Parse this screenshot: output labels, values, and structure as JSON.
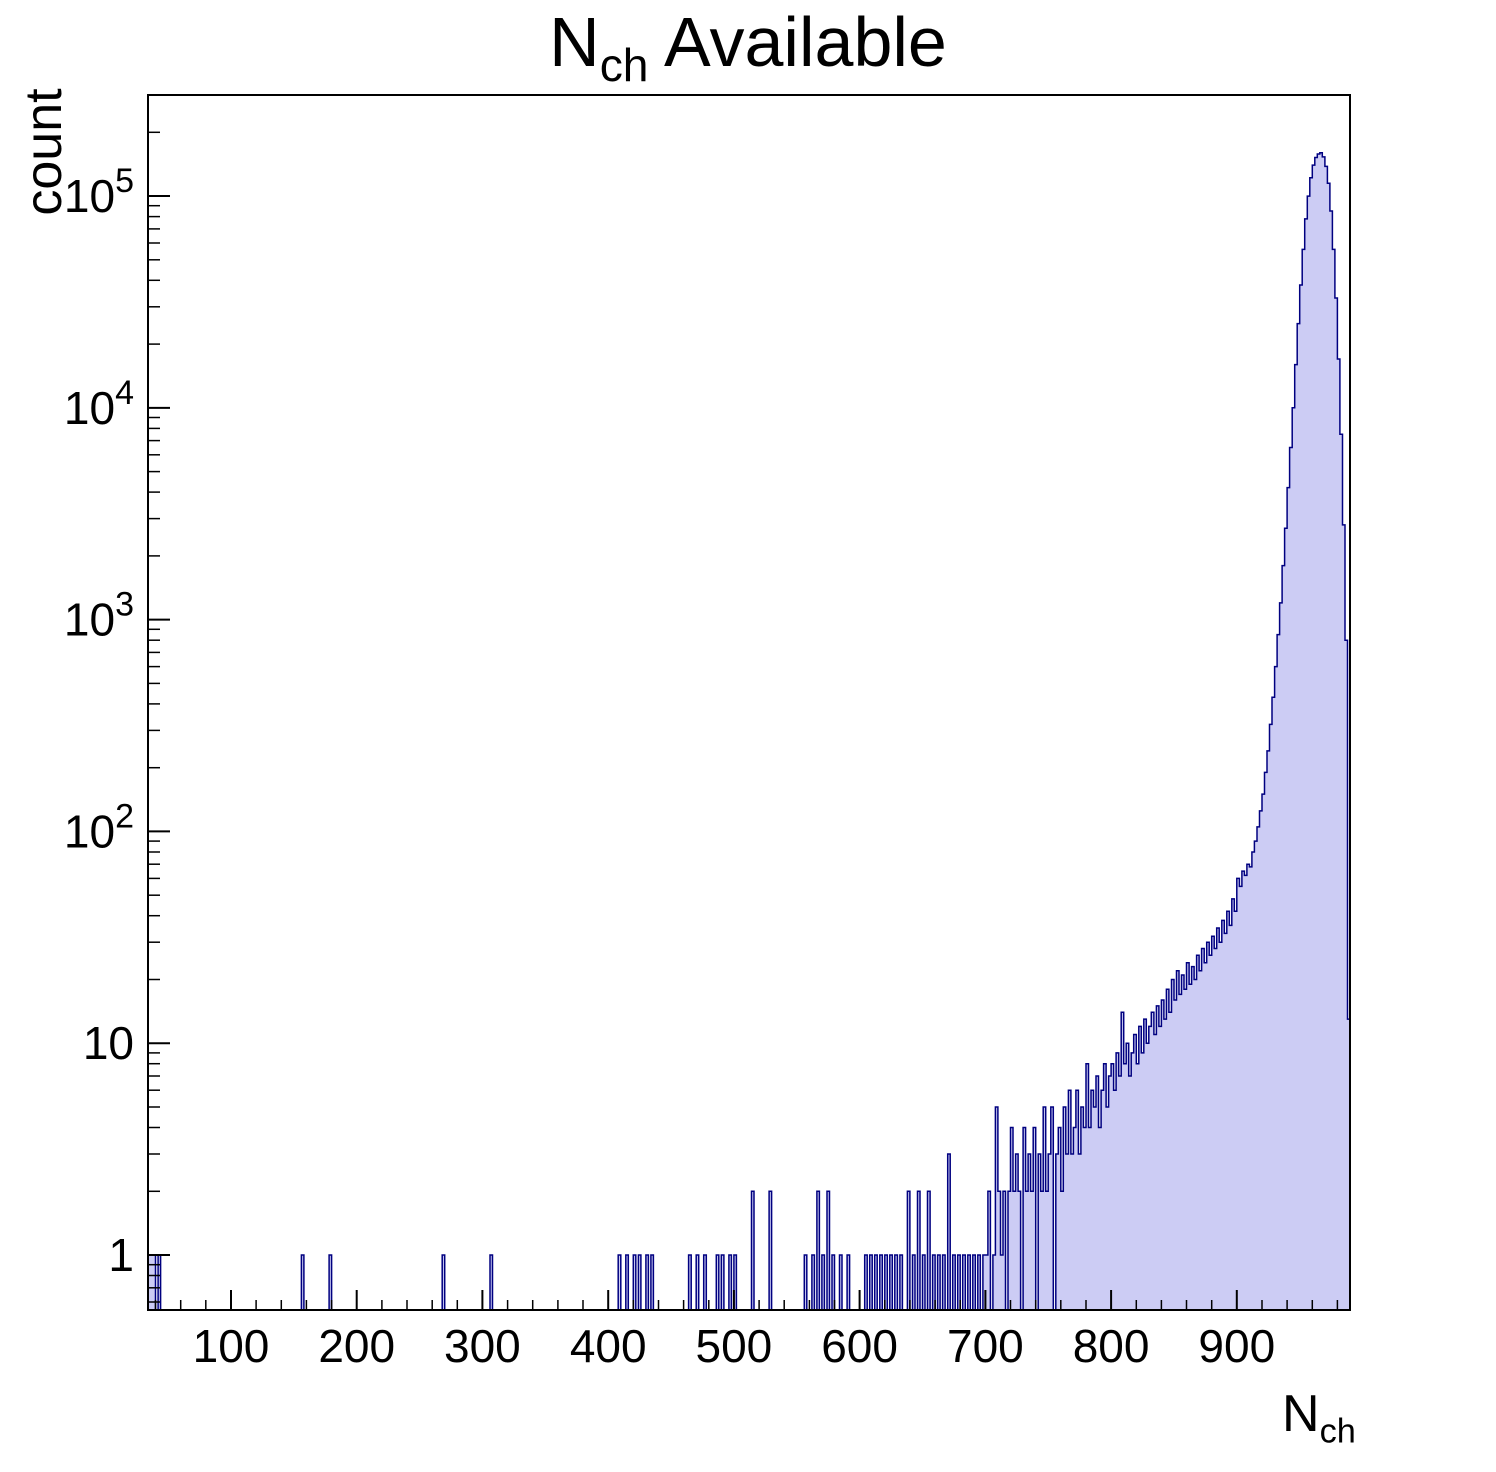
{
  "chart_data": {
    "type": "bar",
    "subtype": "filled-step-histogram",
    "title_parts": {
      "main": "N",
      "sub": "ch",
      "rest": " Available"
    },
    "ylabel": "count",
    "xlabel_parts": {
      "main": "N",
      "sub": "ch"
    },
    "yscale": "log",
    "grid": false,
    "legend_position": "none",
    "xlim": [
      34,
      990
    ],
    "ylim": [
      0.55,
      300000
    ],
    "bin_width": 2,
    "x_major_ticks": [
      100,
      200,
      300,
      400,
      500,
      600,
      700,
      800,
      900
    ],
    "x_minor_step": 20,
    "y_major_ticks": [
      1,
      10,
      100,
      1000,
      10000,
      100000
    ],
    "colors": {
      "fill": "#ccccf4",
      "line": "#000080",
      "axis": "#000000",
      "text": "#000000"
    },
    "bins": [
      [
        34,
        1
      ],
      [
        36,
        1
      ],
      [
        38,
        1
      ],
      [
        42,
        1
      ],
      [
        156,
        1
      ],
      [
        178,
        1
      ],
      [
        268,
        1
      ],
      [
        306,
        1
      ],
      [
        408,
        1
      ],
      [
        414,
        1
      ],
      [
        420,
        1
      ],
      [
        424,
        1
      ],
      [
        430,
        1
      ],
      [
        434,
        1
      ],
      [
        464,
        1
      ],
      [
        470,
        1
      ],
      [
        476,
        1
      ],
      [
        486,
        1
      ],
      [
        490,
        1
      ],
      [
        496,
        1
      ],
      [
        500,
        1
      ],
      [
        514,
        2
      ],
      [
        528,
        2
      ],
      [
        556,
        1
      ],
      [
        562,
        1
      ],
      [
        566,
        2
      ],
      [
        570,
        1
      ],
      [
        574,
        2
      ],
      [
        578,
        1
      ],
      [
        584,
        1
      ],
      [
        590,
        1
      ],
      [
        604,
        1
      ],
      [
        608,
        1
      ],
      [
        612,
        1
      ],
      [
        616,
        1
      ],
      [
        620,
        1
      ],
      [
        624,
        1
      ],
      [
        628,
        1
      ],
      [
        632,
        1
      ],
      [
        638,
        2
      ],
      [
        642,
        1
      ],
      [
        646,
        2
      ],
      [
        650,
        1
      ],
      [
        654,
        2
      ],
      [
        658,
        1
      ],
      [
        662,
        1
      ],
      [
        666,
        1
      ],
      [
        670,
        3
      ],
      [
        674,
        1
      ],
      [
        678,
        1
      ],
      [
        682,
        1
      ],
      [
        686,
        1
      ],
      [
        690,
        1
      ],
      [
        694,
        1
      ],
      [
        698,
        1
      ],
      [
        700,
        1
      ],
      [
        702,
        2
      ],
      [
        706,
        1
      ],
      [
        708,
        5
      ],
      [
        710,
        2
      ],
      [
        712,
        1
      ],
      [
        714,
        2
      ],
      [
        718,
        2
      ],
      [
        720,
        4
      ],
      [
        722,
        2
      ],
      [
        724,
        3
      ],
      [
        726,
        2
      ],
      [
        730,
        4
      ],
      [
        732,
        2
      ],
      [
        734,
        3
      ],
      [
        736,
        2
      ],
      [
        738,
        4
      ],
      [
        742,
        3
      ],
      [
        744,
        2
      ],
      [
        746,
        5
      ],
      [
        748,
        2
      ],
      [
        750,
        3
      ],
      [
        752,
        5
      ],
      [
        756,
        3
      ],
      [
        758,
        4
      ],
      [
        760,
        2
      ],
      [
        762,
        5
      ],
      [
        764,
        3
      ],
      [
        766,
        6
      ],
      [
        768,
        3
      ],
      [
        770,
        4
      ],
      [
        772,
        6
      ],
      [
        774,
        3
      ],
      [
        776,
        5
      ],
      [
        778,
        4
      ],
      [
        780,
        8
      ],
      [
        782,
        4
      ],
      [
        784,
        6
      ],
      [
        786,
        5
      ],
      [
        788,
        7
      ],
      [
        790,
        4
      ],
      [
        792,
        6
      ],
      [
        794,
        8
      ],
      [
        796,
        5
      ],
      [
        798,
        7
      ],
      [
        800,
        8
      ],
      [
        802,
        6
      ],
      [
        804,
        9
      ],
      [
        806,
        7
      ],
      [
        808,
        14
      ],
      [
        810,
        8
      ],
      [
        812,
        10
      ],
      [
        814,
        7
      ],
      [
        816,
        9
      ],
      [
        818,
        11
      ],
      [
        820,
        8
      ],
      [
        822,
        12
      ],
      [
        824,
        9
      ],
      [
        826,
        13
      ],
      [
        828,
        10
      ],
      [
        830,
        12
      ],
      [
        832,
        14
      ],
      [
        834,
        11
      ],
      [
        836,
        15
      ],
      [
        838,
        12
      ],
      [
        840,
        16
      ],
      [
        842,
        13
      ],
      [
        844,
        18
      ],
      [
        846,
        14
      ],
      [
        848,
        20
      ],
      [
        850,
        16
      ],
      [
        852,
        22
      ],
      [
        854,
        17
      ],
      [
        856,
        21
      ],
      [
        858,
        18
      ],
      [
        860,
        24
      ],
      [
        862,
        19
      ],
      [
        864,
        23
      ],
      [
        866,
        20
      ],
      [
        868,
        26
      ],
      [
        870,
        22
      ],
      [
        872,
        28
      ],
      [
        874,
        24
      ],
      [
        876,
        30
      ],
      [
        878,
        26
      ],
      [
        880,
        32
      ],
      [
        882,
        28
      ],
      [
        884,
        35
      ],
      [
        886,
        30
      ],
      [
        888,
        38
      ],
      [
        890,
        33
      ],
      [
        892,
        42
      ],
      [
        894,
        36
      ],
      [
        896,
        48
      ],
      [
        898,
        42
      ],
      [
        900,
        60
      ],
      [
        902,
        55
      ],
      [
        904,
        65
      ],
      [
        906,
        62
      ],
      [
        908,
        70
      ],
      [
        910,
        68
      ],
      [
        912,
        80
      ],
      [
        914,
        90
      ],
      [
        916,
        105
      ],
      [
        918,
        125
      ],
      [
        920,
        150
      ],
      [
        922,
        190
      ],
      [
        924,
        240
      ],
      [
        926,
        320
      ],
      [
        928,
        430
      ],
      [
        930,
        600
      ],
      [
        932,
        850
      ],
      [
        934,
        1200
      ],
      [
        936,
        1800
      ],
      [
        938,
        2700
      ],
      [
        940,
        4200
      ],
      [
        942,
        6500
      ],
      [
        944,
        10000
      ],
      [
        946,
        16000
      ],
      [
        948,
        25000
      ],
      [
        950,
        38000
      ],
      [
        952,
        56000
      ],
      [
        954,
        78000
      ],
      [
        956,
        100000
      ],
      [
        958,
        122000
      ],
      [
        960,
        140000
      ],
      [
        962,
        152000
      ],
      [
        964,
        158000
      ],
      [
        966,
        160000
      ],
      [
        968,
        153000
      ],
      [
        970,
        138000
      ],
      [
        972,
        115000
      ],
      [
        974,
        85000
      ],
      [
        976,
        56000
      ],
      [
        978,
        33000
      ],
      [
        980,
        17000
      ],
      [
        982,
        7500
      ],
      [
        984,
        2800
      ],
      [
        986,
        800
      ],
      [
        988,
        13
      ]
    ]
  }
}
